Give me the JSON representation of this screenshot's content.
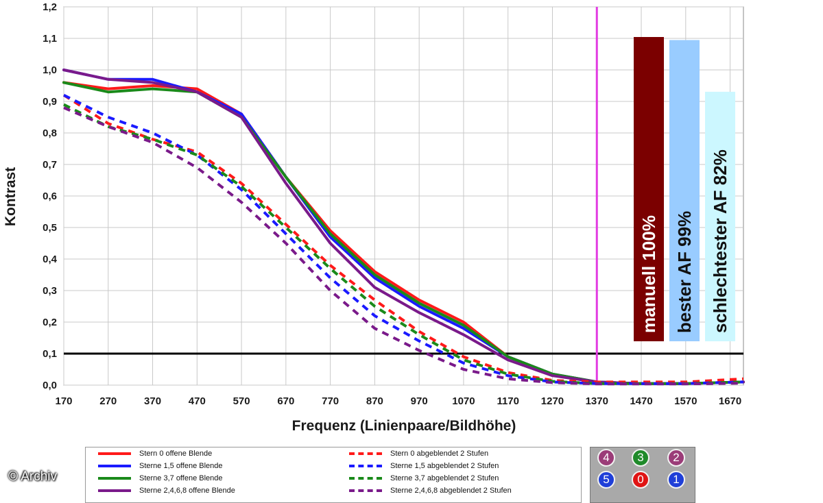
{
  "chart_data": {
    "type": "line",
    "title": "",
    "xlabel": "Frequenz (Linienpaare/Bildhöhe)",
    "ylabel": "Kontrast",
    "xlim": [
      170,
      1700
    ],
    "ylim": [
      0,
      1.2
    ],
    "x_ticks": [
      "170",
      "270",
      "370",
      "470",
      "570",
      "670",
      "770",
      "870",
      "970",
      "1070",
      "1170",
      "1270",
      "1370",
      "1470",
      "1570",
      "1670"
    ],
    "y_ticks": [
      "0,0",
      "0,1",
      "0,2",
      "0,3",
      "0,4",
      "0,5",
      "0,6",
      "0,7",
      "0,8",
      "0,9",
      "1,0",
      "1,1",
      "1,2"
    ],
    "grid": true,
    "reference_line": {
      "y": 0.1,
      "color": "#000000"
    },
    "vertical_marker": {
      "x": 1370,
      "color": "#e23ae2"
    },
    "series": [
      {
        "name": "Stern 0 offene Blende",
        "color": "#ff1a1a",
        "style": "solid",
        "x": [
          170,
          270,
          370,
          470,
          570,
          670,
          770,
          870,
          970,
          1070,
          1170,
          1270,
          1370,
          1470,
          1570,
          1700
        ],
        "y": [
          0.96,
          0.94,
          0.95,
          0.94,
          0.86,
          0.66,
          0.49,
          0.36,
          0.27,
          0.2,
          0.09,
          0.035,
          0.01,
          0.005,
          0.005,
          0.01
        ]
      },
      {
        "name": "Sterne 1,5 offene Blende",
        "color": "#1a1aff",
        "style": "solid",
        "x": [
          170,
          270,
          370,
          470,
          570,
          670,
          770,
          870,
          970,
          1070,
          1170,
          1270,
          1370,
          1470,
          1570,
          1700
        ],
        "y": [
          1.0,
          0.97,
          0.97,
          0.93,
          0.86,
          0.66,
          0.47,
          0.34,
          0.25,
          0.18,
          0.09,
          0.035,
          0.01,
          0.005,
          0.005,
          0.01
        ]
      },
      {
        "name": "Sterne 3,7 offene Blende",
        "color": "#1a8a1a",
        "style": "solid",
        "x": [
          170,
          270,
          370,
          470,
          570,
          670,
          770,
          870,
          970,
          1070,
          1170,
          1270,
          1370,
          1470,
          1570,
          1700
        ],
        "y": [
          0.96,
          0.93,
          0.94,
          0.93,
          0.85,
          0.66,
          0.48,
          0.35,
          0.26,
          0.19,
          0.09,
          0.035,
          0.01,
          0.005,
          0.005,
          0.01
        ]
      },
      {
        "name": "Sterne 2,4,6,8 offene Blende",
        "color": "#7a1a8a",
        "style": "solid",
        "x": [
          170,
          270,
          370,
          470,
          570,
          670,
          770,
          870,
          970,
          1070,
          1170,
          1270,
          1370,
          1470,
          1570,
          1700
        ],
        "y": [
          1.0,
          0.97,
          0.96,
          0.93,
          0.85,
          0.64,
          0.45,
          0.31,
          0.23,
          0.16,
          0.08,
          0.03,
          0.01,
          0.005,
          0.005,
          0.01
        ]
      },
      {
        "name": "Stern 0 abgeblendet 2 Stufen",
        "color": "#ff1a1a",
        "style": "dashed",
        "x": [
          170,
          270,
          370,
          470,
          570,
          670,
          770,
          870,
          970,
          1070,
          1170,
          1270,
          1370,
          1470,
          1570,
          1700
        ],
        "y": [
          0.92,
          0.83,
          0.78,
          0.74,
          0.64,
          0.51,
          0.38,
          0.27,
          0.17,
          0.09,
          0.04,
          0.015,
          0.01,
          0.01,
          0.01,
          0.02
        ]
      },
      {
        "name": "Sterne 1,5 abgeblendet 2 Stufen",
        "color": "#1a1aff",
        "style": "dashed",
        "x": [
          170,
          270,
          370,
          470,
          570,
          670,
          770,
          870,
          970,
          1070,
          1170,
          1270,
          1370,
          1470,
          1570,
          1700
        ],
        "y": [
          0.92,
          0.85,
          0.8,
          0.73,
          0.62,
          0.48,
          0.34,
          0.22,
          0.14,
          0.07,
          0.03,
          0.01,
          0.005,
          0.005,
          0.005,
          0.01
        ]
      },
      {
        "name": "Sterne 3,7 abgeblendet 2 Stufen",
        "color": "#1a8a1a",
        "style": "dashed",
        "x": [
          170,
          270,
          370,
          470,
          570,
          670,
          770,
          870,
          970,
          1070,
          1170,
          1270,
          1370,
          1470,
          1570,
          1700
        ],
        "y": [
          0.89,
          0.82,
          0.78,
          0.73,
          0.63,
          0.5,
          0.37,
          0.25,
          0.16,
          0.08,
          0.035,
          0.012,
          0.005,
          0.005,
          0.005,
          0.01
        ]
      },
      {
        "name": "Sterne 2,4,6,8 abgeblendet 2 Stufen",
        "color": "#7a1a8a",
        "style": "dashed",
        "x": [
          170,
          270,
          370,
          470,
          570,
          670,
          770,
          870,
          970,
          1070,
          1170,
          1270,
          1370,
          1470,
          1570,
          1700
        ],
        "y": [
          0.88,
          0.82,
          0.77,
          0.69,
          0.58,
          0.45,
          0.3,
          0.18,
          0.11,
          0.05,
          0.02,
          0.008,
          0.004,
          0.004,
          0.004,
          0.006
        ]
      }
    ],
    "bars": [
      {
        "label": "manuell 100%",
        "value": 100,
        "color": "#7b0000",
        "text_color": "#ffffff"
      },
      {
        "label": "bester AF 99%",
        "value": 99,
        "color": "#99ccff",
        "text_color": "#111111"
      },
      {
        "label": "schlechtester AF 82%",
        "value": 82,
        "color": "#ccf7ff",
        "text_color": "#111111"
      }
    ]
  },
  "legend": {
    "items": [
      {
        "label": "Stern 0 offene Blende",
        "color": "#ff1a1a",
        "style": "solid"
      },
      {
        "label": "Stern 0 abgeblendet 2 Stufen",
        "color": "#ff1a1a",
        "style": "dashed"
      },
      {
        "label": "Sterne 1,5 offene Blende",
        "color": "#1a1aff",
        "style": "solid"
      },
      {
        "label": "Sterne 1,5 abgeblendet 2 Stufen",
        "color": "#1a1aff",
        "style": "dashed"
      },
      {
        "label": "Sterne 3,7 offene Blende",
        "color": "#1a8a1a",
        "style": "solid"
      },
      {
        "label": "Sterne 3,7 abgeblendet 2 Stufen",
        "color": "#1a8a1a",
        "style": "dashed"
      },
      {
        "label": "Sterne 2,4,6,8 offene Blende",
        "color": "#7a1a8a",
        "style": "solid"
      },
      {
        "label": "Sterne 2,4,6,8 abgeblendet 2 Stufen",
        "color": "#7a1a8a",
        "style": "dashed"
      }
    ]
  },
  "star_panel": {
    "stars": [
      {
        "label": "4",
        "color": "#9b3c78"
      },
      {
        "label": "3",
        "color": "#1f8a2a"
      },
      {
        "label": "2",
        "color": "#9b3c78"
      },
      {
        "label": "5",
        "color": "#1f3fd8"
      },
      {
        "label": "0",
        "color": "#e01414"
      },
      {
        "label": "1",
        "color": "#1f3fd8"
      }
    ]
  },
  "watermark": "© Archiv"
}
